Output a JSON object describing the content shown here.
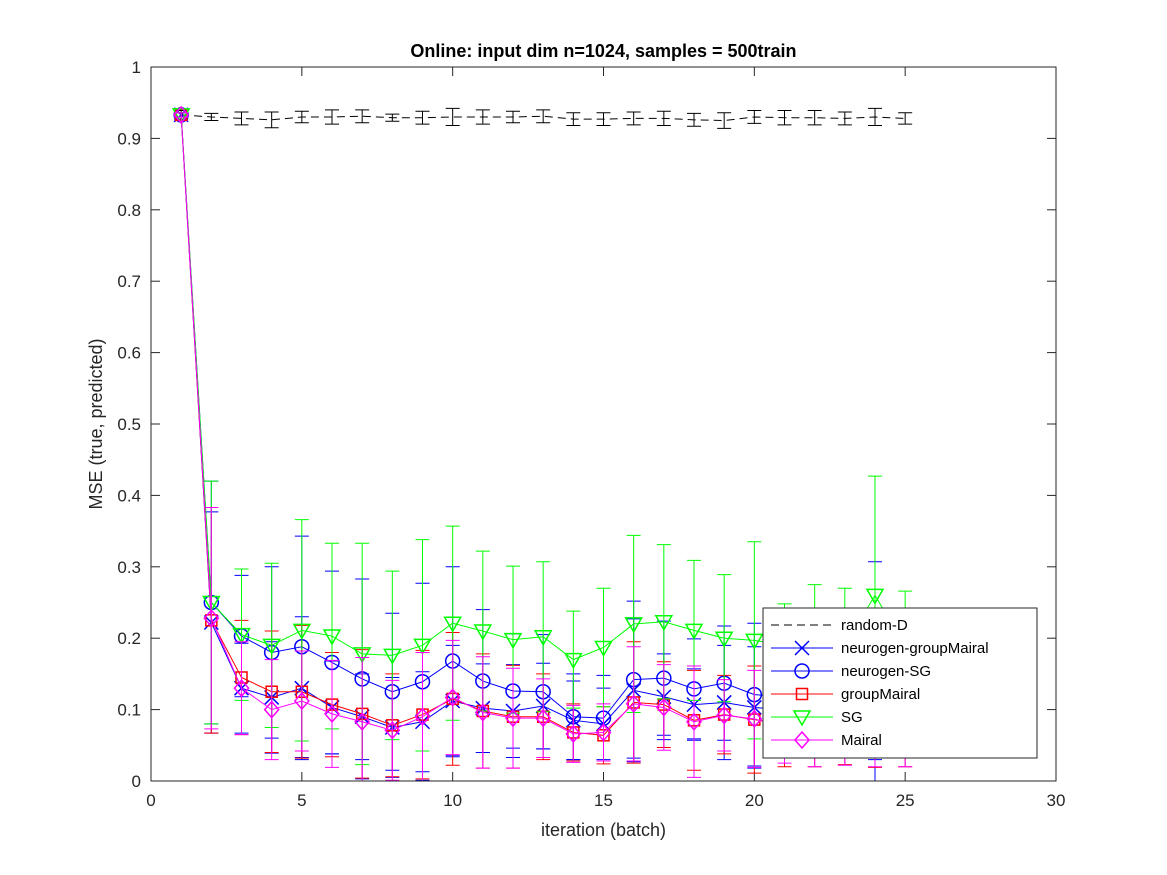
{
  "chart_data": {
    "type": "line",
    "title": "Online:  input dim n=1024, samples = 500train",
    "xlabel": "iteration (batch)",
    "ylabel": "MSE (true, predicted)",
    "xlim": [
      0,
      30
    ],
    "ylim": [
      0,
      1
    ],
    "xticks": [
      "0",
      "5",
      "10",
      "15",
      "20",
      "25",
      "30"
    ],
    "yticks": [
      "0",
      "0.1",
      "0.2",
      "0.3",
      "0.4",
      "0.5",
      "0.6",
      "0.7",
      "0.8",
      "0.9",
      "1"
    ],
    "grid": false,
    "legend_position": "bottom-right",
    "series": [
      {
        "name": "random-D",
        "color": "#000000",
        "linestyle": "dashed",
        "marker": "none",
        "x": [
          1,
          2,
          3,
          4,
          5,
          6,
          7,
          8,
          9,
          10,
          11,
          12,
          13,
          14,
          15,
          16,
          17,
          18,
          19,
          20,
          21,
          22,
          23,
          24,
          25
        ],
        "y": [
          0.933,
          0.93,
          0.928,
          0.926,
          0.93,
          0.93,
          0.931,
          0.929,
          0.929,
          0.93,
          0.93,
          0.93,
          0.931,
          0.927,
          0.927,
          0.928,
          0.928,
          0.926,
          0.925,
          0.93,
          0.929,
          0.929,
          0.928,
          0.93,
          0.928
        ],
        "err": [
          0.006,
          0.005,
          0.009,
          0.011,
          0.008,
          0.01,
          0.009,
          0.005,
          0.009,
          0.012,
          0.01,
          0.008,
          0.009,
          0.009,
          0.009,
          0.009,
          0.01,
          0.009,
          0.011,
          0.009,
          0.01,
          0.01,
          0.009,
          0.012,
          0.008
        ]
      },
      {
        "name": "neurogen-groupMairal",
        "color": "#0000ff",
        "linestyle": "solid",
        "marker": "x",
        "x": [
          1,
          2,
          3,
          4,
          5,
          6,
          7,
          8,
          9,
          10,
          11,
          12,
          13,
          14,
          15,
          16,
          17,
          18,
          19,
          20,
          21,
          22,
          23,
          24,
          25
        ],
        "y": [
          0.933,
          0.222,
          0.13,
          0.117,
          0.13,
          0.103,
          0.09,
          0.075,
          0.083,
          0.112,
          0.102,
          0.098,
          0.105,
          0.085,
          0.08,
          0.127,
          0.118,
          0.107,
          0.11,
          0.103,
          0.1,
          0.095,
          0.098,
          0.1,
          0.095
        ],
        "err": [
          0.003,
          0.155,
          0.063,
          0.078,
          0.1,
          0.065,
          0.06,
          0.07,
          0.07,
          0.078,
          0.062,
          0.065,
          0.06,
          0.055,
          0.05,
          0.1,
          0.06,
          0.05,
          0.08,
          0.085,
          0.06,
          0.06,
          0.06,
          0.07,
          0.06
        ]
      },
      {
        "name": "neurogen-SG",
        "color": "#0000ff",
        "linestyle": "solid",
        "marker": "o",
        "x": [
          1,
          2,
          3,
          4,
          5,
          6,
          7,
          8,
          9,
          10,
          11,
          12,
          13,
          14,
          15,
          16,
          17,
          18,
          19,
          20,
          21,
          22,
          23,
          24,
          25
        ],
        "y": [
          0.933,
          0.25,
          0.203,
          0.18,
          0.188,
          0.166,
          0.143,
          0.125,
          0.139,
          0.168,
          0.14,
          0.126,
          0.125,
          0.09,
          0.088,
          0.142,
          0.144,
          0.129,
          0.137,
          0.121,
          0.118,
          0.116,
          0.115,
          0.117,
          0.115
        ],
        "err": [
          0.003,
          0.17,
          0.085,
          0.12,
          0.155,
          0.128,
          0.14,
          0.11,
          0.138,
          0.132,
          0.1,
          0.08,
          0.08,
          0.06,
          0.06,
          0.11,
          0.08,
          0.07,
          0.08,
          0.1,
          0.08,
          0.08,
          0.08,
          0.19,
          0.08
        ]
      },
      {
        "name": "groupMairal",
        "color": "#ff0000",
        "linestyle": "solid",
        "marker": "s",
        "x": [
          1,
          2,
          3,
          4,
          5,
          6,
          7,
          8,
          9,
          10,
          11,
          12,
          13,
          14,
          15,
          16,
          17,
          18,
          19,
          20,
          21,
          22,
          23,
          24,
          25
        ],
        "y": [
          0.933,
          0.225,
          0.145,
          0.125,
          0.125,
          0.107,
          0.094,
          0.078,
          0.093,
          0.115,
          0.098,
          0.09,
          0.09,
          0.068,
          0.064,
          0.11,
          0.107,
          0.085,
          0.093,
          0.086,
          0.08,
          0.075,
          0.078,
          0.074,
          0.072
        ],
        "err": [
          0.003,
          0.158,
          0.08,
          0.085,
          0.093,
          0.073,
          0.09,
          0.072,
          0.09,
          0.093,
          0.08,
          0.072,
          0.06,
          0.04,
          0.04,
          0.085,
          0.06,
          0.07,
          0.055,
          0.075,
          0.06,
          0.055,
          0.055,
          0.055,
          0.052
        ]
      },
      {
        "name": "SG",
        "color": "#00ff00",
        "linestyle": "solid",
        "marker": "v",
        "x": [
          1,
          2,
          3,
          4,
          5,
          6,
          7,
          8,
          9,
          10,
          11,
          12,
          13,
          14,
          15,
          16,
          17,
          18,
          19,
          20,
          21,
          22,
          23,
          24,
          25
        ],
        "y": [
          0.933,
          0.25,
          0.205,
          0.19,
          0.211,
          0.203,
          0.178,
          0.176,
          0.19,
          0.221,
          0.21,
          0.198,
          0.202,
          0.17,
          0.187,
          0.22,
          0.223,
          0.211,
          0.2,
          0.197,
          0.19,
          0.195,
          0.19,
          0.26,
          0.188
        ],
        "err": [
          0.003,
          0.17,
          0.092,
          0.115,
          0.155,
          0.13,
          0.155,
          0.118,
          0.148,
          0.136,
          0.112,
          0.103,
          0.105,
          0.068,
          0.083,
          0.124,
          0.108,
          0.098,
          0.089,
          0.138,
          0.058,
          0.08,
          0.08,
          0.167,
          0.078
        ]
      },
      {
        "name": "Mairal",
        "color": "#ff00ff",
        "linestyle": "solid",
        "marker": "d",
        "x": [
          1,
          2,
          3,
          4,
          5,
          6,
          7,
          8,
          9,
          10,
          11,
          12,
          13,
          14,
          15,
          16,
          17,
          18,
          19,
          20,
          21,
          22,
          23,
          24,
          25
        ],
        "y": [
          0.933,
          0.228,
          0.13,
          0.1,
          0.112,
          0.094,
          0.083,
          0.071,
          0.09,
          0.117,
          0.096,
          0.088,
          0.088,
          0.066,
          0.068,
          0.108,
          0.103,
          0.083,
          0.092,
          0.087,
          0.075,
          0.07,
          0.072,
          0.07,
          0.068
        ],
        "err": [
          0.003,
          0.155,
          0.065,
          0.07,
          0.07,
          0.075,
          0.09,
          0.07,
          0.09,
          0.08,
          0.078,
          0.07,
          0.055,
          0.04,
          0.04,
          0.08,
          0.06,
          0.078,
          0.05,
          0.068,
          0.05,
          0.05,
          0.05,
          0.05,
          0.048
        ]
      }
    ]
  }
}
